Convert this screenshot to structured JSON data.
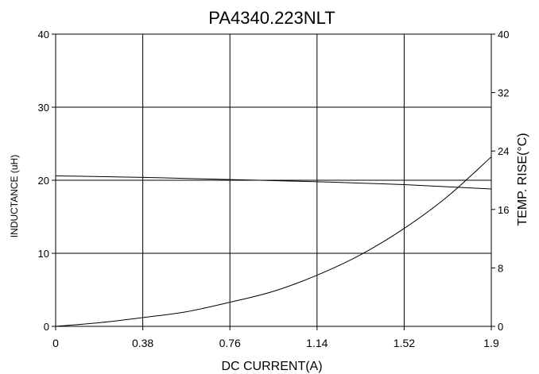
{
  "chart_data": {
    "type": "line",
    "title": "PA4340.223NLT",
    "xlabel": "DC CURRENT(A)",
    "ylabel": "INDUCTANCE (uH)",
    "y2label": "TEMP. RISE(°C)",
    "xlim": [
      0,
      1.9
    ],
    "ylim": [
      0,
      40
    ],
    "y2lim": [
      0,
      40
    ],
    "x_ticks": [
      0,
      0.38,
      0.76,
      1.14,
      1.52,
      1.9
    ],
    "x_tick_labels": [
      "0",
      "0.38",
      "0.76",
      "1.14",
      "1.52",
      "1.9"
    ],
    "y_ticks": [
      0,
      10,
      20,
      30,
      40
    ],
    "y_tick_labels": [
      "0",
      "10",
      "20",
      "30",
      "40"
    ],
    "y2_ticks": [
      0,
      8,
      16,
      24,
      32,
      40
    ],
    "y2_tick_labels": [
      "0",
      "8",
      "16",
      "24",
      "32",
      "40"
    ],
    "grid": true,
    "series": [
      {
        "axis": "left",
        "x": [
          0,
          0.19,
          0.38,
          0.57,
          0.76,
          0.95,
          1.14,
          1.33,
          1.52,
          1.71,
          1.9
        ],
        "values": [
          20.6,
          20.5,
          20.4,
          20.25,
          20.1,
          19.95,
          19.8,
          19.6,
          19.4,
          19.1,
          18.8
        ]
      },
      {
        "axis": "right",
        "x": [
          0,
          0.19,
          0.38,
          0.57,
          0.76,
          0.95,
          1.14,
          1.33,
          1.52,
          1.71,
          1.9
        ],
        "values": [
          0,
          0.5,
          1.2,
          2.0,
          3.3,
          4.8,
          7.0,
          9.8,
          13.4,
          17.8,
          23.2
        ]
      }
    ]
  }
}
